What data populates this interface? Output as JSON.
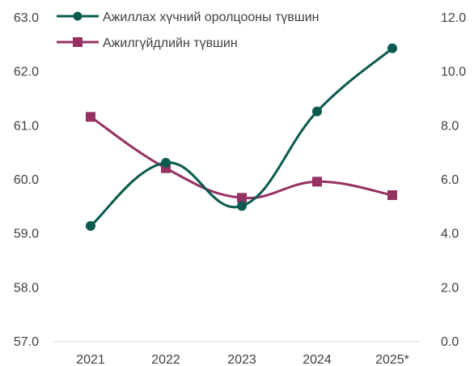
{
  "chart_data": {
    "type": "line",
    "categories": [
      "2021",
      "2022",
      "2023",
      "2024",
      "2025*"
    ],
    "series": [
      {
        "name": "Ажиллах хүчний оролцооны түвшин",
        "axis": "left",
        "color": "#0b5a4f",
        "marker": "circle",
        "values": [
          59.13,
          60.3,
          59.5,
          61.25,
          62.42
        ]
      },
      {
        "name": "Ажилгүйдлийн түвшин",
        "axis": "right",
        "color": "#953263",
        "marker": "square",
        "values": [
          8.3,
          6.4,
          5.3,
          5.9,
          5.4
        ]
      }
    ],
    "y_left": {
      "ylim": [
        57.0,
        63.0
      ],
      "ticks": [
        "57.0",
        "58.0",
        "59.0",
        "60.0",
        "61.0",
        "62.0",
        "63.0"
      ]
    },
    "y_right": {
      "ylim": [
        0.0,
        12.0
      ],
      "ticks": [
        "0.0",
        "2.0",
        "4.0",
        "6.0",
        "8.0",
        "10.0",
        "12.0"
      ]
    },
    "grid": false,
    "legend_position": "top-left",
    "smooth": true
  }
}
